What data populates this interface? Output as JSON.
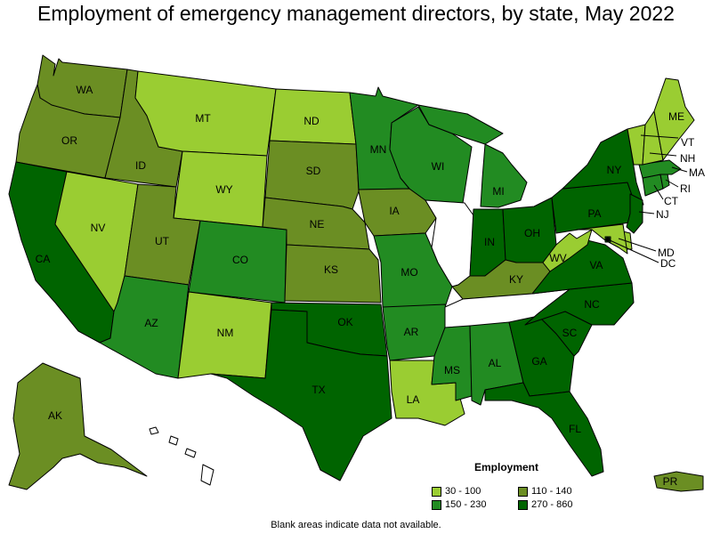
{
  "title": "Employment of emergency management directors, by state, May 2022",
  "legend": {
    "title": "Employment",
    "items": [
      {
        "label": "30 - 100",
        "color": "#9acd32"
      },
      {
        "label": "110 - 140",
        "color": "#6b8e23"
      },
      {
        "label": "150 - 230",
        "color": "#228b22"
      },
      {
        "label": "270 - 860",
        "color": "#006400"
      }
    ]
  },
  "footnote": "Blank areas indicate data not available.",
  "states": {
    "WA": {
      "label": "WA",
      "bin": 1
    },
    "OR": {
      "label": "OR",
      "bin": 1
    },
    "CA": {
      "label": "CA",
      "bin": 3
    },
    "NV": {
      "label": "NV",
      "bin": 0
    },
    "ID": {
      "label": "ID",
      "bin": 1
    },
    "MT": {
      "label": "MT",
      "bin": 0
    },
    "WY": {
      "label": "WY",
      "bin": 0
    },
    "UT": {
      "label": "UT",
      "bin": 1
    },
    "AZ": {
      "label": "AZ",
      "bin": 2
    },
    "CO": {
      "label": "CO",
      "bin": 2
    },
    "NM": {
      "label": "NM",
      "bin": 0
    },
    "ND": {
      "label": "ND",
      "bin": 0
    },
    "SD": {
      "label": "SD",
      "bin": 1
    },
    "NE": {
      "label": "NE",
      "bin": 1
    },
    "KS": {
      "label": "KS",
      "bin": 1
    },
    "OK": {
      "label": "OK",
      "bin": 3
    },
    "TX": {
      "label": "TX",
      "bin": 3
    },
    "MN": {
      "label": "MN",
      "bin": 2
    },
    "IA": {
      "label": "IA",
      "bin": 1
    },
    "MO": {
      "label": "MO",
      "bin": 2
    },
    "AR": {
      "label": "AR",
      "bin": 2
    },
    "LA": {
      "label": "LA",
      "bin": 0
    },
    "WI": {
      "label": "WI",
      "bin": 2
    },
    "MI": {
      "label": "MI",
      "bin": 2
    },
    "IL": {
      "label": "",
      "bin": null
    },
    "IN": {
      "label": "IN",
      "bin": 3
    },
    "OH": {
      "label": "OH",
      "bin": 3
    },
    "KY": {
      "label": "KY",
      "bin": 1
    },
    "TN": {
      "label": "",
      "bin": null
    },
    "MS": {
      "label": "MS",
      "bin": 2
    },
    "AL": {
      "label": "AL",
      "bin": 2
    },
    "GA": {
      "label": "GA",
      "bin": 3
    },
    "FL": {
      "label": "FL",
      "bin": 3
    },
    "SC": {
      "label": "SC",
      "bin": 3
    },
    "NC": {
      "label": "NC",
      "bin": 3
    },
    "VA": {
      "label": "VA",
      "bin": 3
    },
    "WV": {
      "label": "WV",
      "bin": 0
    },
    "PA": {
      "label": "PA",
      "bin": 3
    },
    "NY": {
      "label": "NY",
      "bin": 3
    },
    "NJ": {
      "label": "NJ",
      "bin": 3
    },
    "DE": {
      "label": "",
      "bin": 0
    },
    "MD": {
      "label": "MD",
      "bin": 0
    },
    "DC": {
      "label": "DC",
      "bin": 3
    },
    "CT": {
      "label": "CT",
      "bin": 2
    },
    "RI": {
      "label": "RI",
      "bin": 2
    },
    "MA": {
      "label": "MA",
      "bin": 2
    },
    "VT": {
      "label": "VT",
      "bin": 0
    },
    "NH": {
      "label": "NH",
      "bin": 0
    },
    "ME": {
      "label": "ME",
      "bin": 0
    },
    "AK": {
      "label": "AK",
      "bin": 1
    },
    "HI": {
      "label": "",
      "bin": null
    },
    "PR": {
      "label": "PR",
      "bin": 1
    }
  }
}
